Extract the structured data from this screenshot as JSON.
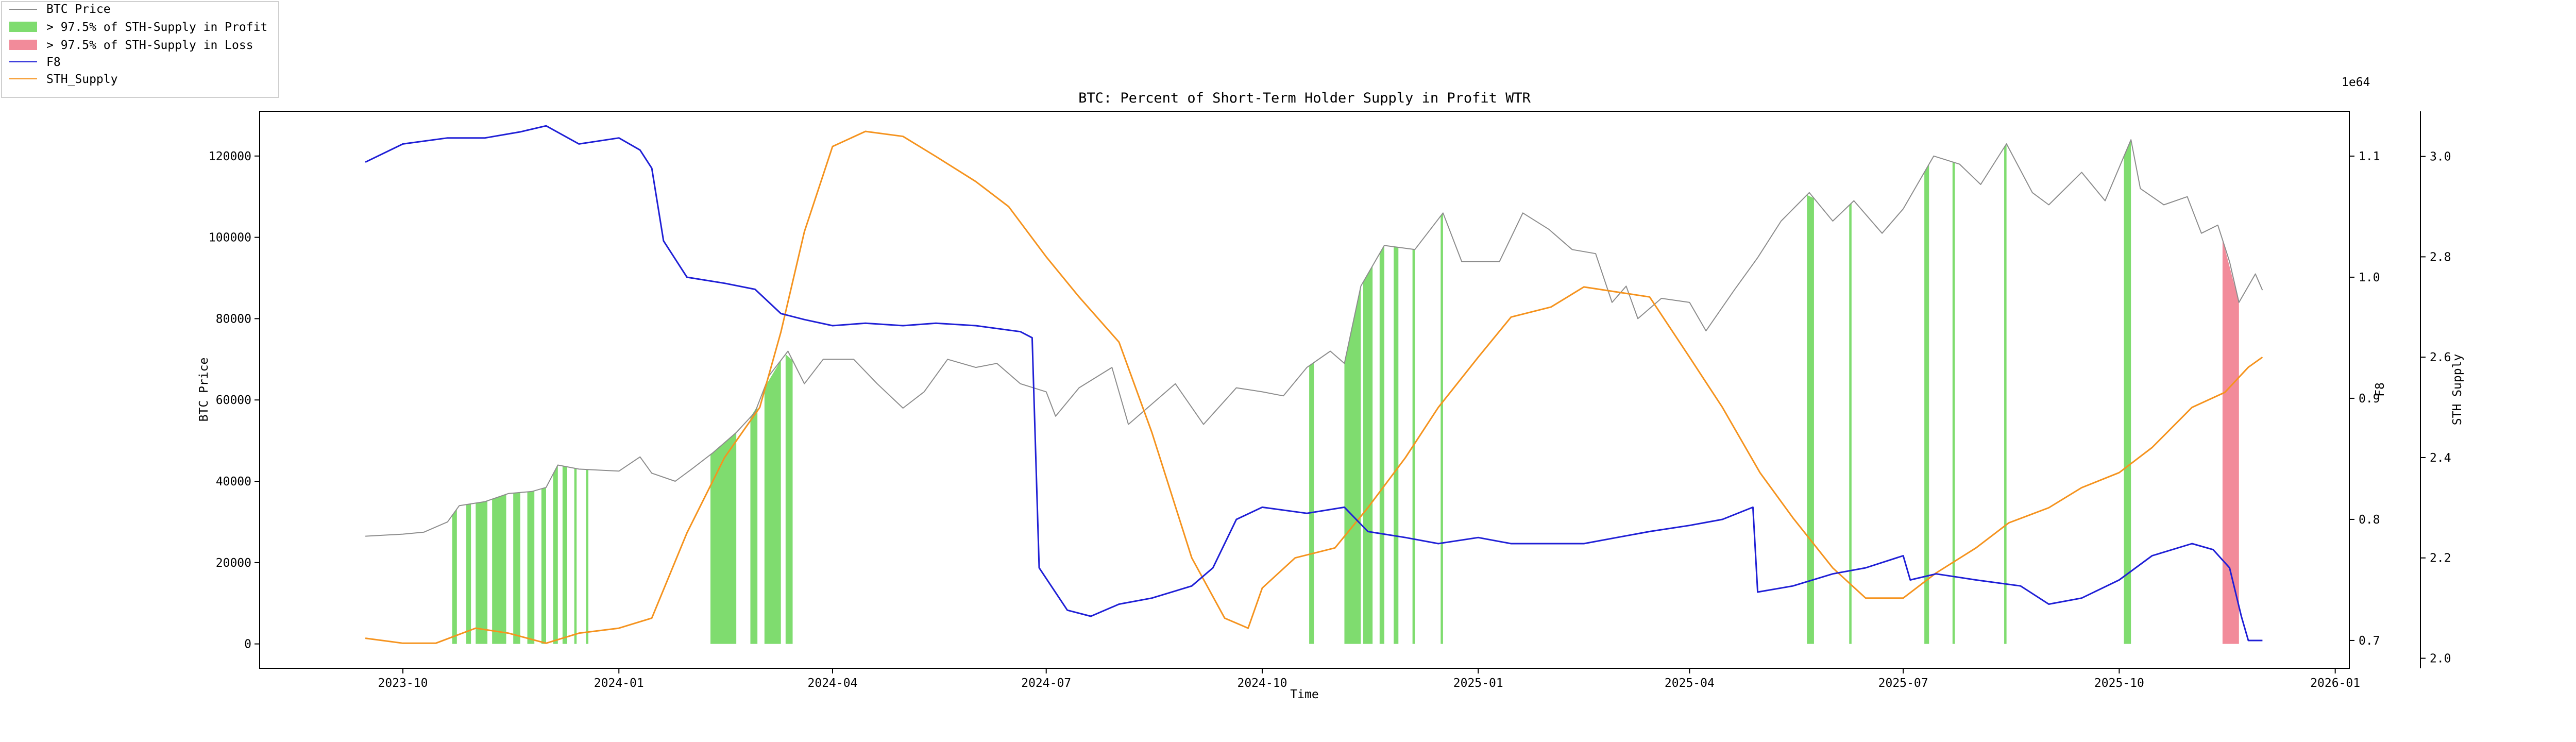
{
  "chart_data": {
    "type": "line",
    "title": "BTC: Percent of Short-Term Holder Supply in Profit WTR",
    "xlabel": "Time",
    "ylabel": "BTC Price",
    "ylabel_right1": "F8",
    "ylabel_right2": "STH Supply",
    "offset_right2": "1e64",
    "xlim": [
      "2023-08-01",
      "2026-01-07"
    ],
    "ylim": [
      -6000,
      131000
    ],
    "ylim_right1": [
      0.677,
      1.137
    ],
    "ylim_right2": [
      1.98,
      3.09
    ],
    "x_ticks": [
      "2023-10",
      "2024-01",
      "2024-04",
      "2024-07",
      "2024-10",
      "2025-01",
      "2025-04",
      "2025-07",
      "2025-10",
      "2026-01"
    ],
    "y_ticks": [
      "0",
      "20000",
      "40000",
      "60000",
      "80000",
      "100000",
      "120000"
    ],
    "y_ticks_right1": [
      "0.7",
      "0.8",
      "0.9",
      "1.0",
      "1.1"
    ],
    "y_ticks_right2": [
      "2.0",
      "2.2",
      "2.4",
      "2.6",
      "2.8",
      "3.0"
    ],
    "grid": false,
    "legend_position": "outside-top-left",
    "legend": [
      {
        "label": "BTC Price",
        "kind": "line",
        "color": "#8c8c8c"
      },
      {
        "label": "> 97.5% of STH-Supply in Profit",
        "kind": "patch",
        "color": "#7fdc6f"
      },
      {
        "label": "> 97.5% of STH-Supply in Loss",
        "kind": "patch",
        "color": "#f28b9a"
      },
      {
        "label": "F8",
        "kind": "line",
        "color": "#1f1fd6"
      },
      {
        "label": "STH_Supply",
        "kind": "line",
        "color": "#f5931e"
      }
    ],
    "series": [
      {
        "name": "BTC Price",
        "axis": "left",
        "color": "#8c8c8c",
        "points": [
          [
            "2023-09-15",
            26500
          ],
          [
            "2023-10-01",
            27000
          ],
          [
            "2023-10-10",
            27500
          ],
          [
            "2023-10-20",
            30000
          ],
          [
            "2023-10-25",
            34000
          ],
          [
            "2023-11-05",
            35000
          ],
          [
            "2023-11-15",
            37000
          ],
          [
            "2023-11-25",
            37500
          ],
          [
            "2023-12-01",
            38500
          ],
          [
            "2023-12-06",
            44000
          ],
          [
            "2023-12-15",
            43000
          ],
          [
            "2024-01-01",
            42500
          ],
          [
            "2024-01-10",
            46000
          ],
          [
            "2024-01-15",
            42000
          ],
          [
            "2024-01-25",
            40000
          ],
          [
            "2024-02-01",
            43000
          ],
          [
            "2024-02-10",
            47000
          ],
          [
            "2024-02-20",
            52000
          ],
          [
            "2024-02-28",
            57000
          ],
          [
            "2024-03-05",
            66000
          ],
          [
            "2024-03-13",
            72000
          ],
          [
            "2024-03-20",
            64000
          ],
          [
            "2024-03-28",
            70000
          ],
          [
            "2024-04-10",
            70000
          ],
          [
            "2024-04-20",
            64000
          ],
          [
            "2024-05-01",
            58000
          ],
          [
            "2024-05-10",
            62000
          ],
          [
            "2024-05-20",
            70000
          ],
          [
            "2024-06-01",
            68000
          ],
          [
            "2024-06-10",
            69000
          ],
          [
            "2024-06-20",
            64000
          ],
          [
            "2024-07-01",
            62000
          ],
          [
            "2024-07-05",
            56000
          ],
          [
            "2024-07-15",
            63000
          ],
          [
            "2024-07-29",
            68000
          ],
          [
            "2024-08-05",
            54000
          ],
          [
            "2024-08-15",
            59000
          ],
          [
            "2024-08-25",
            64000
          ],
          [
            "2024-09-06",
            54000
          ],
          [
            "2024-09-20",
            63000
          ],
          [
            "2024-10-01",
            62000
          ],
          [
            "2024-10-10",
            61000
          ],
          [
            "2024-10-20",
            68000
          ],
          [
            "2024-10-30",
            72000
          ],
          [
            "2024-11-05",
            69000
          ],
          [
            "2024-11-12",
            88000
          ],
          [
            "2024-11-22",
            98000
          ],
          [
            "2024-12-05",
            97000
          ],
          [
            "2024-12-17",
            106000
          ],
          [
            "2024-12-25",
            94000
          ],
          [
            "2025-01-01",
            94000
          ],
          [
            "2025-01-10",
            94000
          ],
          [
            "2025-01-20",
            106000
          ],
          [
            "2025-01-31",
            102000
          ],
          [
            "2025-02-10",
            97000
          ],
          [
            "2025-02-20",
            96000
          ],
          [
            "2025-02-27",
            84000
          ],
          [
            "2025-03-05",
            88000
          ],
          [
            "2025-03-10",
            80000
          ],
          [
            "2025-03-20",
            85000
          ],
          [
            "2025-04-01",
            84000
          ],
          [
            "2025-04-08",
            77000
          ],
          [
            "2025-04-20",
            87000
          ],
          [
            "2025-04-30",
            95000
          ],
          [
            "2025-05-10",
            104000
          ],
          [
            "2025-05-22",
            111000
          ],
          [
            "2025-06-01",
            104000
          ],
          [
            "2025-06-10",
            109000
          ],
          [
            "2025-06-22",
            101000
          ],
          [
            "2025-07-01",
            107000
          ],
          [
            "2025-07-14",
            120000
          ],
          [
            "2025-07-25",
            118000
          ],
          [
            "2025-08-03",
            113000
          ],
          [
            "2025-08-14",
            123000
          ],
          [
            "2025-08-25",
            111000
          ],
          [
            "2025-09-01",
            108000
          ],
          [
            "2025-09-15",
            116000
          ],
          [
            "2025-09-25",
            109000
          ],
          [
            "2025-10-06",
            124000
          ],
          [
            "2025-10-10",
            112000
          ],
          [
            "2025-10-20",
            108000
          ],
          [
            "2025-10-30",
            110000
          ],
          [
            "2025-11-05",
            101000
          ],
          [
            "2025-11-12",
            103000
          ],
          [
            "2025-11-17",
            94000
          ],
          [
            "2025-11-21",
            84000
          ],
          [
            "2025-11-28",
            91000
          ],
          [
            "2025-12-01",
            87000
          ]
        ]
      },
      {
        "name": "F8",
        "axis": "right1",
        "color": "#1f1fd6",
        "points": [
          [
            "2023-09-15",
            1.095
          ],
          [
            "2023-10-01",
            1.11
          ],
          [
            "2023-10-20",
            1.115
          ],
          [
            "2023-11-05",
            1.115
          ],
          [
            "2023-11-20",
            1.12
          ],
          [
            "2023-12-01",
            1.125
          ],
          [
            "2023-12-15",
            1.11
          ],
          [
            "2024-01-01",
            1.115
          ],
          [
            "2024-01-10",
            1.105
          ],
          [
            "2024-01-15",
            1.09
          ],
          [
            "2024-01-20",
            1.03
          ],
          [
            "2024-01-30",
            1.0
          ],
          [
            "2024-02-15",
            0.995
          ],
          [
            "2024-02-28",
            0.99
          ],
          [
            "2024-03-10",
            0.97
          ],
          [
            "2024-03-20",
            0.965
          ],
          [
            "2024-04-01",
            0.96
          ],
          [
            "2024-04-15",
            0.962
          ],
          [
            "2024-05-01",
            0.96
          ],
          [
            "2024-05-15",
            0.962
          ],
          [
            "2024-06-01",
            0.96
          ],
          [
            "2024-06-20",
            0.955
          ],
          [
            "2024-06-25",
            0.95
          ],
          [
            "2024-06-28",
            0.76
          ],
          [
            "2024-07-10",
            0.725
          ],
          [
            "2024-07-20",
            0.72
          ],
          [
            "2024-08-01",
            0.73
          ],
          [
            "2024-08-15",
            0.735
          ],
          [
            "2024-09-01",
            0.745
          ],
          [
            "2024-09-10",
            0.76
          ],
          [
            "2024-09-20",
            0.8
          ],
          [
            "2024-10-01",
            0.81
          ],
          [
            "2024-10-20",
            0.805
          ],
          [
            "2024-11-05",
            0.81
          ],
          [
            "2024-11-15",
            0.79
          ],
          [
            "2024-12-01",
            0.785
          ],
          [
            "2024-12-15",
            0.78
          ],
          [
            "2025-01-01",
            0.785
          ],
          [
            "2025-01-15",
            0.78
          ],
          [
            "2025-02-01",
            0.78
          ],
          [
            "2025-02-15",
            0.78
          ],
          [
            "2025-03-01",
            0.785
          ],
          [
            "2025-03-15",
            0.79
          ],
          [
            "2025-04-01",
            0.795
          ],
          [
            "2025-04-15",
            0.8
          ],
          [
            "2025-04-28",
            0.81
          ],
          [
            "2025-04-30",
            0.74
          ],
          [
            "2025-05-15",
            0.745
          ],
          [
            "2025-06-01",
            0.755
          ],
          [
            "2025-06-15",
            0.76
          ],
          [
            "2025-07-01",
            0.77
          ],
          [
            "2025-07-04",
            0.75
          ],
          [
            "2025-07-15",
            0.755
          ],
          [
            "2025-08-01",
            0.75
          ],
          [
            "2025-08-20",
            0.745
          ],
          [
            "2025-09-01",
            0.73
          ],
          [
            "2025-09-15",
            0.735
          ],
          [
            "2025-10-01",
            0.75
          ],
          [
            "2025-10-15",
            0.77
          ],
          [
            "2025-11-01",
            0.78
          ],
          [
            "2025-11-10",
            0.775
          ],
          [
            "2025-11-17",
            0.76
          ],
          [
            "2025-11-22",
            0.72
          ],
          [
            "2025-11-25",
            0.7
          ],
          [
            "2025-12-01",
            0.7
          ]
        ]
      },
      {
        "name": "STH_Supply",
        "axis": "right2",
        "color": "#f5931e",
        "points": [
          [
            "2023-09-15",
            2.04
          ],
          [
            "2023-10-01",
            2.03
          ],
          [
            "2023-10-15",
            2.03
          ],
          [
            "2023-11-01",
            2.06
          ],
          [
            "2023-11-15",
            2.05
          ],
          [
            "2023-12-01",
            2.03
          ],
          [
            "2023-12-15",
            2.05
          ],
          [
            "2024-01-01",
            2.06
          ],
          [
            "2024-01-15",
            2.08
          ],
          [
            "2024-01-30",
            2.25
          ],
          [
            "2024-02-15",
            2.4
          ],
          [
            "2024-03-01",
            2.5
          ],
          [
            "2024-03-10",
            2.65
          ],
          [
            "2024-03-20",
            2.85
          ],
          [
            "2024-04-01",
            3.02
          ],
          [
            "2024-04-15",
            3.05
          ],
          [
            "2024-05-01",
            3.04
          ],
          [
            "2024-05-15",
            3.0
          ],
          [
            "2024-06-01",
            2.95
          ],
          [
            "2024-06-15",
            2.9
          ],
          [
            "2024-07-01",
            2.8
          ],
          [
            "2024-07-15",
            2.72
          ],
          [
            "2024-08-01",
            2.63
          ],
          [
            "2024-08-15",
            2.45
          ],
          [
            "2024-09-01",
            2.2
          ],
          [
            "2024-09-15",
            2.08
          ],
          [
            "2024-09-25",
            2.06
          ],
          [
            "2024-10-01",
            2.14
          ],
          [
            "2024-10-15",
            2.2
          ],
          [
            "2024-11-01",
            2.22
          ],
          [
            "2024-11-15",
            2.3
          ],
          [
            "2024-12-01",
            2.4
          ],
          [
            "2024-12-15",
            2.5
          ],
          [
            "2025-01-01",
            2.6
          ],
          [
            "2025-01-15",
            2.68
          ],
          [
            "2025-02-01",
            2.7
          ],
          [
            "2025-02-15",
            2.74
          ],
          [
            "2025-03-01",
            2.73
          ],
          [
            "2025-03-15",
            2.72
          ],
          [
            "2025-04-01",
            2.6
          ],
          [
            "2025-04-15",
            2.5
          ],
          [
            "2025-05-01",
            2.37
          ],
          [
            "2025-05-15",
            2.28
          ],
          [
            "2025-06-01",
            2.18
          ],
          [
            "2025-06-15",
            2.12
          ],
          [
            "2025-07-01",
            2.12
          ],
          [
            "2025-07-15",
            2.17
          ],
          [
            "2025-08-01",
            2.22
          ],
          [
            "2025-08-15",
            2.27
          ],
          [
            "2025-09-01",
            2.3
          ],
          [
            "2025-09-15",
            2.34
          ],
          [
            "2025-10-01",
            2.37
          ],
          [
            "2025-10-15",
            2.42
          ],
          [
            "2025-11-01",
            2.5
          ],
          [
            "2025-11-15",
            2.53
          ],
          [
            "2025-11-25",
            2.58
          ],
          [
            "2025-12-01",
            2.6
          ]
        ]
      }
    ],
    "profit_bands": [
      [
        "2023-10-22",
        "2023-10-24"
      ],
      [
        "2023-10-28",
        "2023-10-30"
      ],
      [
        "2023-11-01",
        "2023-11-06"
      ],
      [
        "2023-11-08",
        "2023-11-14"
      ],
      [
        "2023-11-17",
        "2023-11-20"
      ],
      [
        "2023-11-23",
        "2023-11-26"
      ],
      [
        "2023-11-29",
        "2023-12-01"
      ],
      [
        "2023-12-04",
        "2023-12-06"
      ],
      [
        "2023-12-08",
        "2023-12-10"
      ],
      [
        "2023-12-13",
        "2023-12-14"
      ],
      [
        "2023-12-18",
        "2023-12-19"
      ],
      [
        "2024-02-09",
        "2024-02-20"
      ],
      [
        "2024-02-26",
        "2024-02-29"
      ],
      [
        "2024-03-03",
        "2024-03-10"
      ],
      [
        "2024-03-12",
        "2024-03-15"
      ],
      [
        "2024-10-21",
        "2024-10-23"
      ],
      [
        "2024-11-05",
        "2024-11-12"
      ],
      [
        "2024-11-13",
        "2024-11-17"
      ],
      [
        "2024-11-20",
        "2024-11-22"
      ],
      [
        "2024-11-26",
        "2024-11-28"
      ],
      [
        "2024-12-04",
        "2024-12-05"
      ],
      [
        "2024-12-16",
        "2024-12-17"
      ],
      [
        "2025-05-21",
        "2025-05-24"
      ],
      [
        "2025-06-08",
        "2025-06-09"
      ],
      [
        "2025-07-10",
        "2025-07-12"
      ],
      [
        "2025-07-22",
        "2025-07-23"
      ],
      [
        "2025-08-13",
        "2025-08-14"
      ],
      [
        "2025-10-03",
        "2025-10-06"
      ]
    ],
    "loss_bands": [
      [
        "2025-11-14",
        "2025-11-21"
      ]
    ]
  }
}
